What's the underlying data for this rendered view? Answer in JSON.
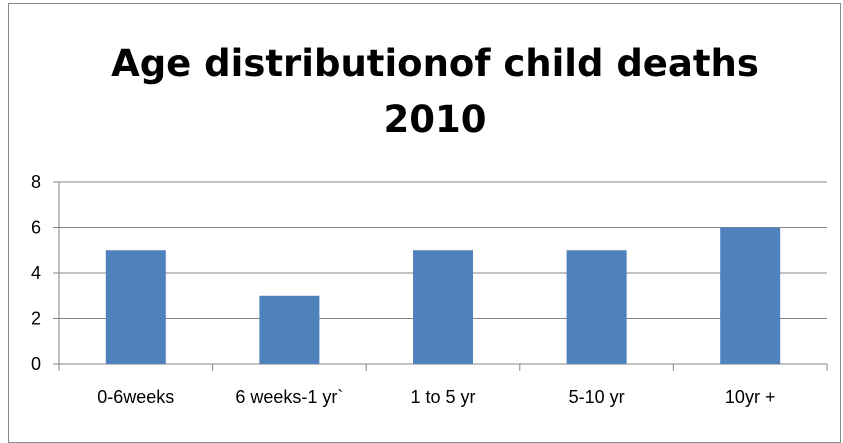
{
  "chart_data": {
    "type": "bar",
    "title_line1": "Age distributionof child deaths",
    "title_line2": "2010",
    "categories": [
      "0-6weeks",
      "6 weeks-1 yr`",
      "1 to 5 yr",
      "5-10 yr",
      "10yr +"
    ],
    "values": [
      5,
      3,
      5,
      5,
      6
    ],
    "ylim": [
      0,
      8
    ],
    "yticks": [
      0,
      2,
      4,
      6,
      8
    ],
    "grid": true,
    "legend": "none",
    "bar_color": "#4f81bd",
    "grid_color": "#868686"
  }
}
